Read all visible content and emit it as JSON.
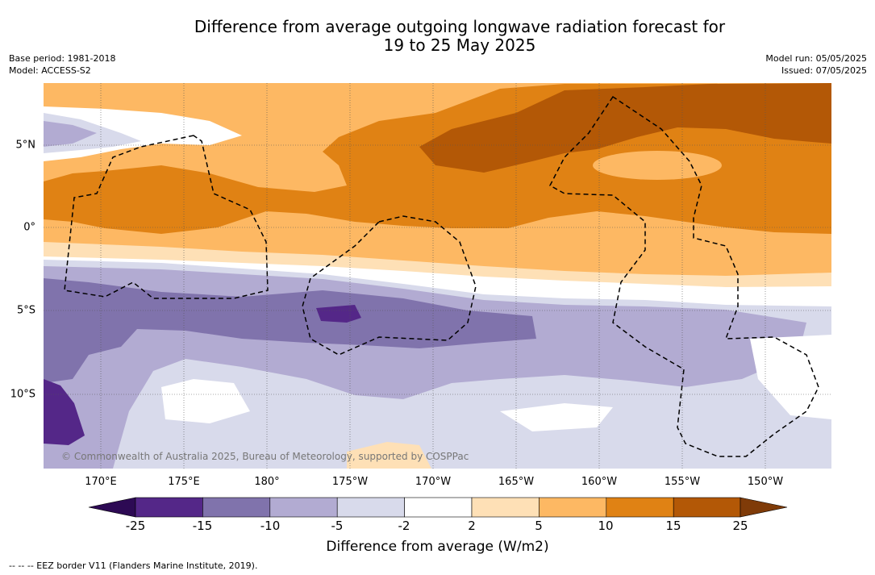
{
  "title_line1": "Difference from average outgoing longwave radiation forecast for",
  "title_line2": "19 to 25 May 2025",
  "base_period": "Base period: 1981-2018",
  "model": "Model: ACCESS-S2",
  "model_run": "Model run: 05/05/2025",
  "issued": "Issued: 07/05/2025",
  "longitude_labels": [
    "170°E",
    "175°E",
    "180°",
    "175°W",
    "170°W",
    "165°W",
    "160°W",
    "155°W",
    "150°W"
  ],
  "latitude_labels": [
    "5°N",
    "0°",
    "5°S",
    "10°S"
  ],
  "copyright": "© Commonwealth of Australia 2025, Bureau of Meteorology, supported by COSPPac",
  "colorbar": {
    "ticks": [
      "-25",
      "-15",
      "-10",
      "-5",
      "-2",
      "2",
      "5",
      "10",
      "15",
      "25"
    ],
    "colors": [
      "#2d0a54",
      "#542788",
      "#8073ac",
      "#b2abd2",
      "#d8daeb",
      "#ffffff",
      "#fee0b6",
      "#fdb863",
      "#e08214",
      "#b35806",
      "#7f3b08"
    ],
    "label": "Difference from average (W/m2)"
  },
  "legend_note": "--  --  -- EEZ border V11 (Flanders Marine Institute, 2019)."
}
